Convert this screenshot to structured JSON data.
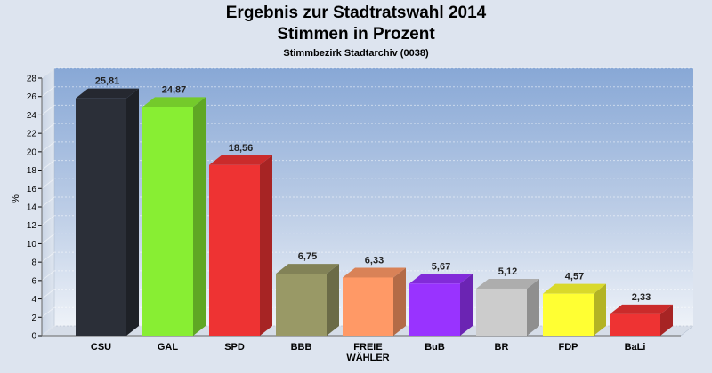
{
  "header": {
    "title": "Ergebnis zur Stadtratswahl 2014",
    "subtitle": "Stimmen in Prozent",
    "district": "Stimmbezirk Stadtarchiv (0038)"
  },
  "chart_data": {
    "type": "bar",
    "title": "Ergebnis zur Stadtratswahl 2014",
    "subtitle": "Stimmen in Prozent",
    "caption": "Stimmbezirk Stadtarchiv (0038)",
    "xlabel": "",
    "ylabel": "%",
    "ylim": [
      0,
      28
    ],
    "yticks": [
      0,
      2,
      4,
      6,
      8,
      10,
      12,
      14,
      16,
      18,
      20,
      22,
      24,
      26,
      28
    ],
    "grid": true,
    "categories": [
      "CSU",
      "GAL",
      "SPD",
      "BBB",
      "FREIE WÄHLER",
      "BuB",
      "BR",
      "FDP",
      "BaLi"
    ],
    "category_labels": [
      [
        "CSU"
      ],
      [
        "GAL"
      ],
      [
        "SPD"
      ],
      [
        "BBB"
      ],
      [
        "FREIE",
        "WÄHLER"
      ],
      [
        "BuB"
      ],
      [
        "BR"
      ],
      [
        "FDP"
      ],
      [
        "BaLi"
      ]
    ],
    "values": [
      25.81,
      24.87,
      18.56,
      6.75,
      6.33,
      5.67,
      5.12,
      4.57,
      2.33
    ],
    "value_labels": [
      "25,81",
      "24,87",
      "18,56",
      "6,75",
      "6,33",
      "5,67",
      "5,12",
      "4,57",
      "2,33"
    ],
    "colors": [
      "#2b2f38",
      "#88ee33",
      "#ee3333",
      "#999966",
      "#ff9966",
      "#9933ff",
      "#cccccc",
      "#ffff33",
      "#ee3333"
    ]
  }
}
